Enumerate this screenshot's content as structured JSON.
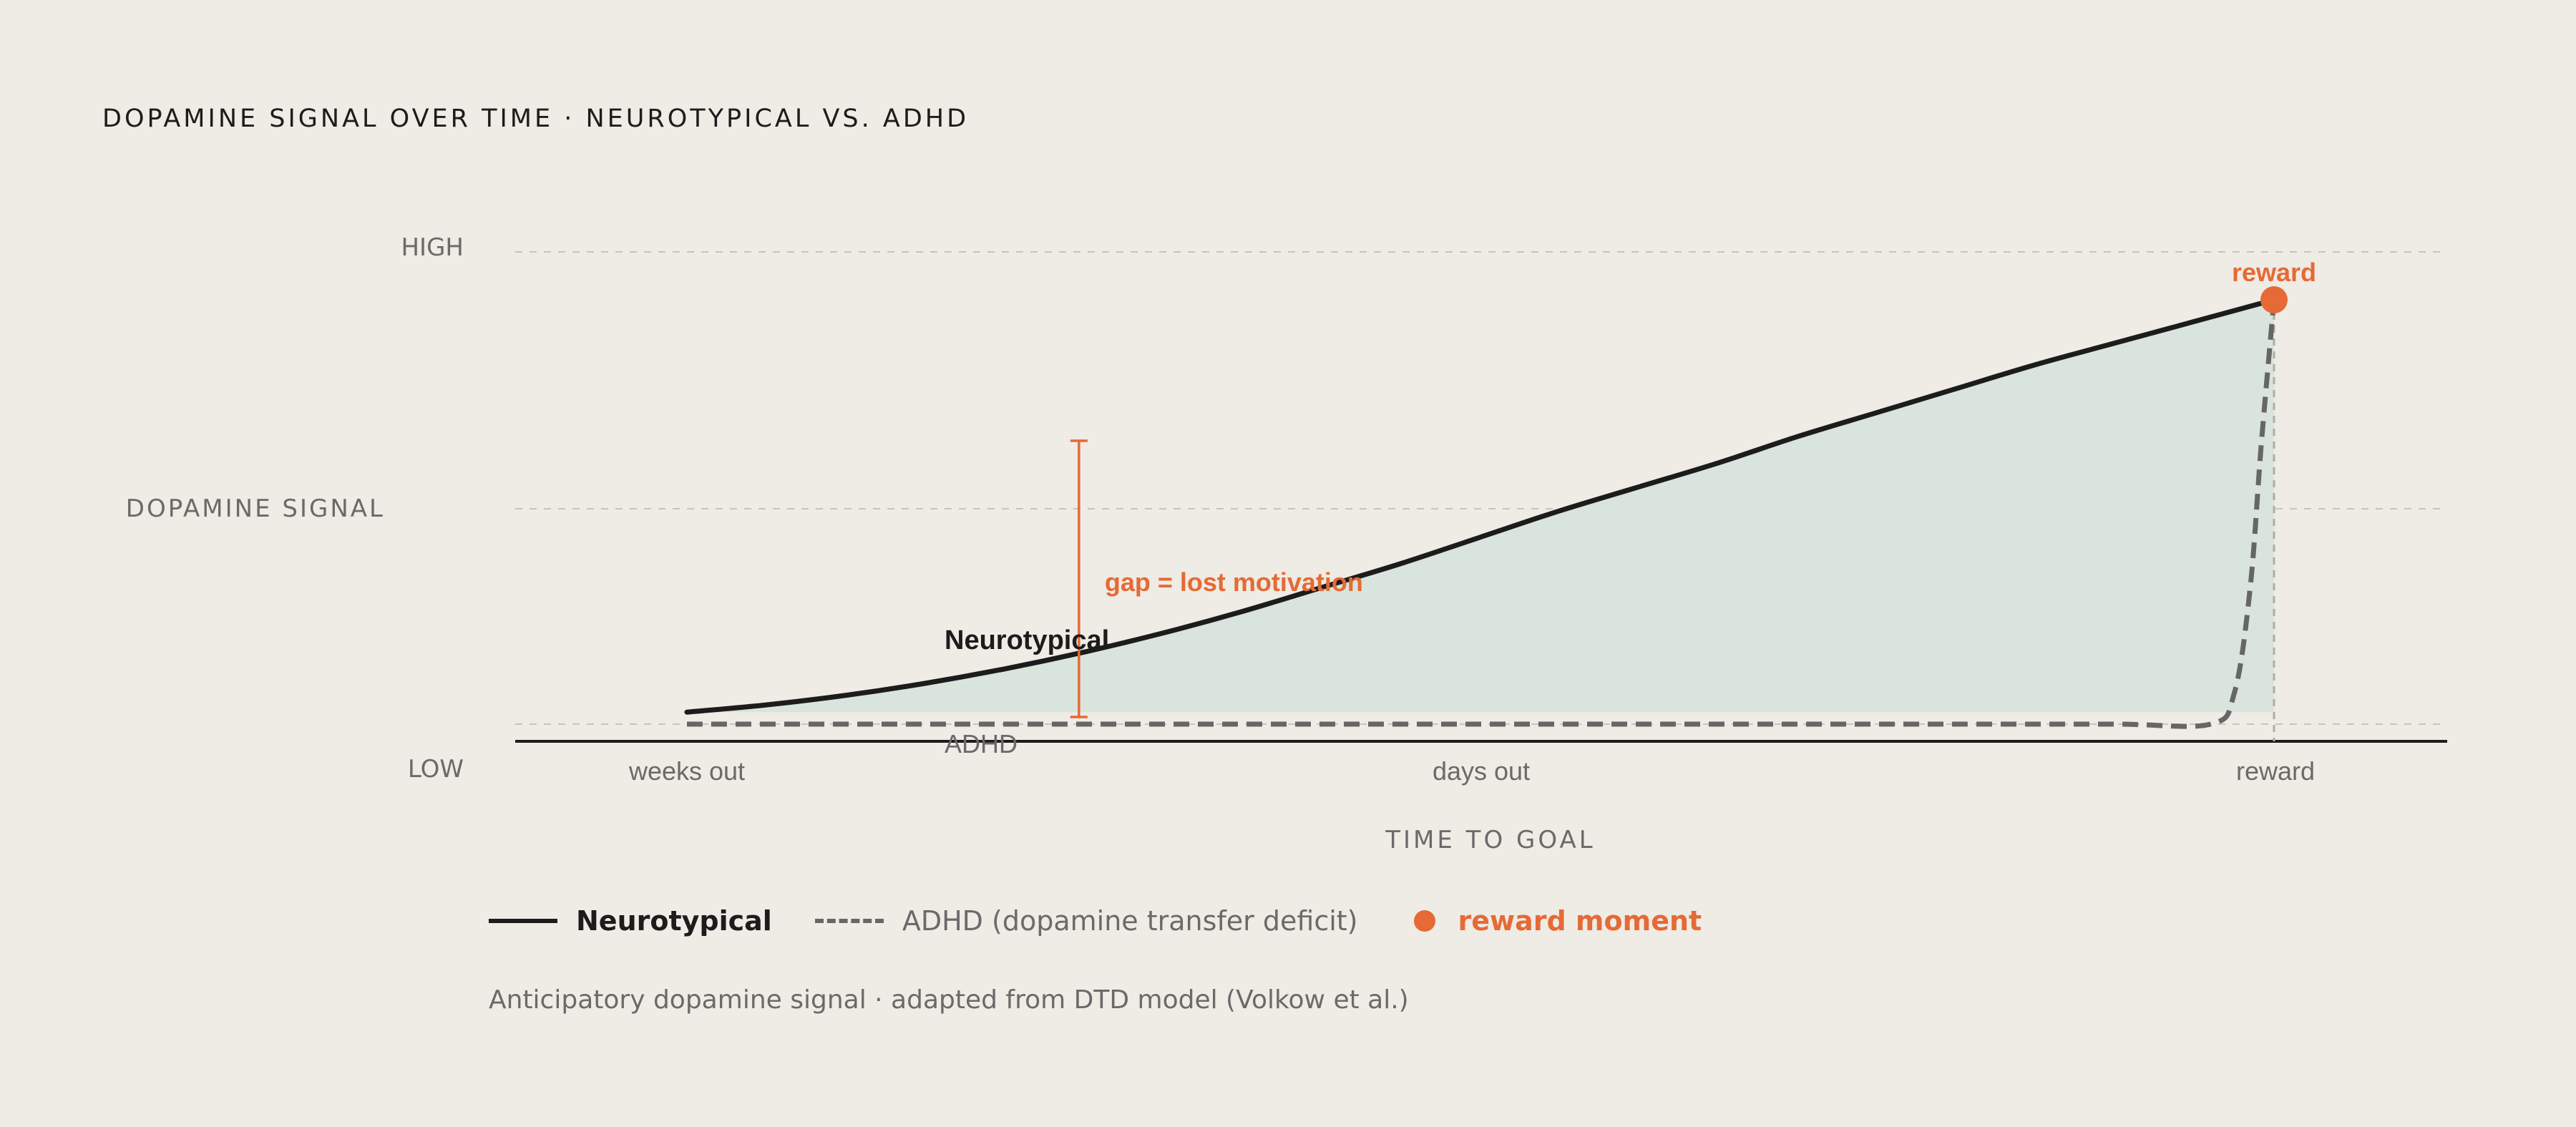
{
  "chart_data": {
    "type": "line",
    "title": "DOPAMINE SIGNAL OVER TIME · NEUROTYPICAL VS. ADHD",
    "ylabel": "DOPAMINE SIGNAL",
    "xlabel": "TIME TO GOAL",
    "y_ticks": [
      {
        "label": "HIGH",
        "value": 1.0
      },
      {
        "label": "LOW",
        "value": 0.0
      }
    ],
    "x_ticks": [
      {
        "label": "weeks out",
        "value": 0.0
      },
      {
        "label": "days out",
        "value": 0.46
      },
      {
        "label": "reward",
        "value": 1.0
      }
    ],
    "xlim": [
      0,
      1
    ],
    "ylim": [
      0,
      1
    ],
    "grid": "horizontal dashed",
    "series": [
      {
        "name": "Neurotypical",
        "style": "solid",
        "color": "#1c1c1c",
        "x": [
          0.0,
          0.05,
          0.1,
          0.15,
          0.2,
          0.25,
          0.3,
          0.35,
          0.4,
          0.45,
          0.5,
          0.55,
          0.6,
          0.65,
          0.7,
          0.75,
          0.8,
          0.85,
          0.9,
          0.95,
          1.0
        ],
        "y": [
          0.04,
          0.055,
          0.075,
          0.1,
          0.13,
          0.165,
          0.205,
          0.25,
          0.3,
          0.35,
          0.405,
          0.46,
          0.51,
          0.56,
          0.615,
          0.665,
          0.715,
          0.765,
          0.81,
          0.855,
          0.9
        ]
      },
      {
        "name": "ADHD",
        "style": "dashed",
        "color": "#666666",
        "x": [
          0.0,
          0.1,
          0.2,
          0.3,
          0.4,
          0.5,
          0.6,
          0.7,
          0.8,
          0.9,
          0.96,
          0.975,
          0.985,
          0.992,
          1.0
        ],
        "y": [
          0.015,
          0.015,
          0.015,
          0.015,
          0.015,
          0.015,
          0.015,
          0.015,
          0.015,
          0.015,
          0.015,
          0.08,
          0.3,
          0.6,
          0.9
        ]
      }
    ],
    "series_labels": {
      "neurotypical": "Neurotypical",
      "adhd": "ADHD"
    },
    "annotations": {
      "gap": "gap = lost motivation",
      "reward": "reward"
    },
    "fill_between": {
      "between": [
        "Neurotypical",
        "ADHD"
      ],
      "color": "#d9e4dc"
    },
    "reward_point": {
      "x": 1.0,
      "y": 0.9,
      "color": "#e56a35"
    }
  },
  "legend": {
    "neurotypical": "Neurotypical",
    "adhd": "ADHD (dopamine transfer deficit)",
    "reward": "reward moment"
  },
  "caption": "Anticipatory dopamine signal · adapted from DTD model (Volkow et al.)",
  "colors": {
    "accent": "#e56a35",
    "fill": "#d9e4dc",
    "background": "#efebe5",
    "line": "#1c1c1c",
    "adhd": "#666666"
  }
}
